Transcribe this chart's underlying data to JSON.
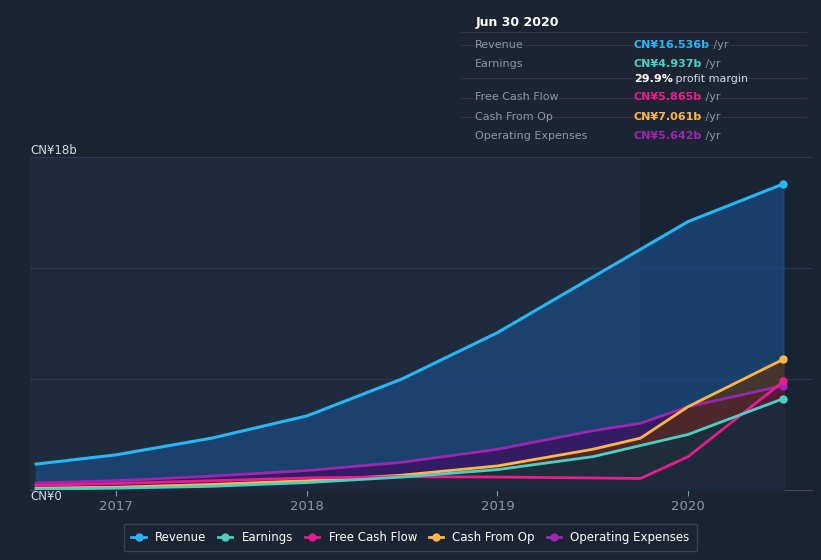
{
  "bg_color": "#1c2333",
  "plot_bg": "#1e2b3c",
  "plot_bg_right": "#1a2535",
  "grid_color": "#2a3a52",
  "title_label": "CN¥18b",
  "zero_label": "CN¥0",
  "x_ticks": [
    2017,
    2018,
    2019,
    2020
  ],
  "ylim": [
    0,
    18
  ],
  "xlim_start": 2016.55,
  "xlim_end": 2020.65,
  "series": {
    "Revenue": {
      "color": "#29b6f6",
      "fill_color": "#1565a0",
      "x": [
        2016.58,
        2017.0,
        2017.5,
        2018.0,
        2018.5,
        2019.0,
        2019.5,
        2020.0,
        2020.5
      ],
      "y": [
        1.4,
        1.9,
        2.8,
        4.0,
        6.0,
        8.5,
        11.5,
        14.5,
        16.536
      ]
    },
    "Earnings": {
      "color": "#4dd0c4",
      "fill_color": "#1a5c5c",
      "x": [
        2016.58,
        2017.0,
        2017.5,
        2018.0,
        2018.5,
        2019.0,
        2019.5,
        2020.0,
        2020.5
      ],
      "y": [
        0.05,
        0.1,
        0.2,
        0.4,
        0.7,
        1.1,
        1.8,
        3.0,
        4.937
      ]
    },
    "Free Cash Flow": {
      "color": "#e91e8c",
      "fill_color": "#5a1040",
      "x": [
        2016.58,
        2017.0,
        2017.5,
        2018.0,
        2018.5,
        2019.0,
        2019.5,
        2019.75,
        2020.0,
        2020.5
      ],
      "y": [
        0.25,
        0.35,
        0.5,
        0.65,
        0.72,
        0.7,
        0.65,
        0.62,
        1.8,
        5.865
      ]
    },
    "Cash From Op": {
      "color": "#ffb74d",
      "fill_color": "#7a4010",
      "x": [
        2016.58,
        2017.0,
        2017.5,
        2018.0,
        2018.5,
        2019.0,
        2019.5,
        2019.75,
        2020.0,
        2020.5
      ],
      "y": [
        0.1,
        0.15,
        0.3,
        0.5,
        0.8,
        1.3,
        2.2,
        2.8,
        4.5,
        7.061
      ]
    },
    "Operating Expenses": {
      "color": "#9c27b0",
      "fill_color": "#4a1080",
      "x": [
        2016.58,
        2017.0,
        2017.5,
        2018.0,
        2018.5,
        2019.0,
        2019.5,
        2019.75,
        2020.0,
        2020.5
      ],
      "y": [
        0.38,
        0.5,
        0.75,
        1.05,
        1.5,
        2.2,
        3.2,
        3.6,
        4.5,
        5.642
      ]
    }
  },
  "tooltip": {
    "title": "Jun 30 2020",
    "rows": [
      {
        "label": "Revenue",
        "value": "CN¥16.536b",
        "unit": " /yr",
        "color": "#29b6f6",
        "sep_before": true
      },
      {
        "label": "Earnings",
        "value": "CN¥4.937b",
        "unit": " /yr",
        "color": "#4dd0c4",
        "sep_before": true
      },
      {
        "label": "",
        "value": "29.9%",
        "unit": " profit margin",
        "color": "#ffffff",
        "sep_before": false
      },
      {
        "label": "Free Cash Flow",
        "value": "CN¥5.865b",
        "unit": " /yr",
        "color": "#e91e8c",
        "sep_before": true
      },
      {
        "label": "Cash From Op",
        "value": "CN¥7.061b",
        "unit": " /yr",
        "color": "#ffb74d",
        "sep_before": true
      },
      {
        "label": "Operating Expenses",
        "value": "CN¥5.642b",
        "unit": " /yr",
        "color": "#9c27b0",
        "sep_before": true
      }
    ]
  },
  "legend": [
    {
      "label": "Revenue",
      "color": "#29b6f6"
    },
    {
      "label": "Earnings",
      "color": "#4dd0c4"
    },
    {
      "label": "Free Cash Flow",
      "color": "#e91e8c"
    },
    {
      "label": "Cash From Op",
      "color": "#ffb74d"
    },
    {
      "label": "Operating Expenses",
      "color": "#9c27b0"
    }
  ]
}
